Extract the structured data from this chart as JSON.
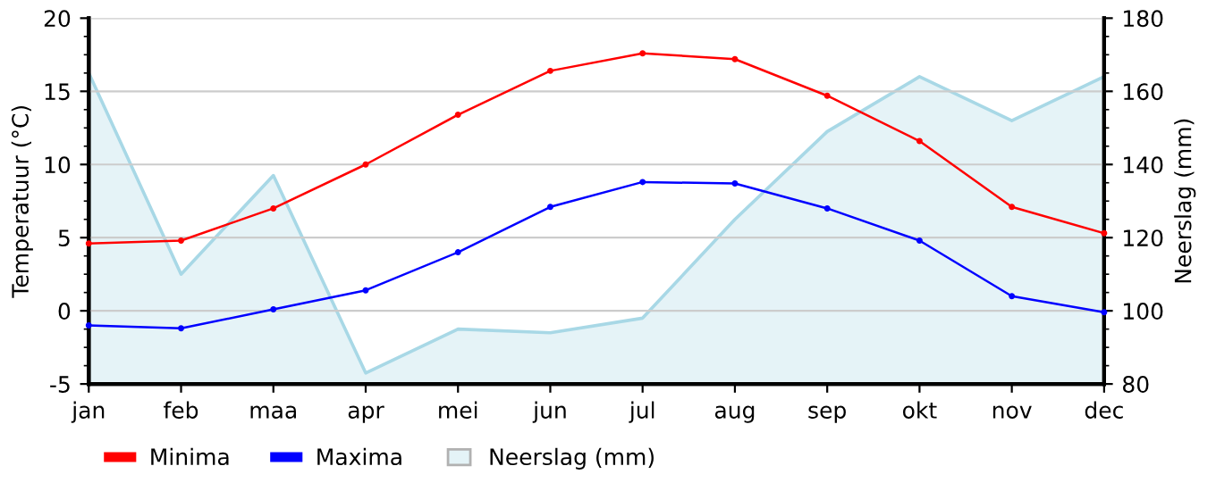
{
  "chart_data": {
    "type": "line",
    "ylabel": "Temperatuur (°C)",
    "y2label": "Neerslag (mm)",
    "categories": [
      "jan",
      "feb",
      "maa",
      "apr",
      "mei",
      "jun",
      "jul",
      "aug",
      "sep",
      "okt",
      "nov",
      "dec"
    ],
    "series": [
      {
        "name": "Minima",
        "color": "#ff0000",
        "marker": "circle",
        "values": [
          4.6,
          4.8,
          7.0,
          10.0,
          13.4,
          16.4,
          17.6,
          17.2,
          14.7,
          11.6,
          7.1,
          5.3
        ]
      },
      {
        "name": "Maxima",
        "color": "#0000ff",
        "marker": "circle",
        "values": [
          -1.0,
          -1.2,
          0.1,
          1.4,
          4.0,
          7.1,
          8.8,
          8.7,
          7.0,
          4.8,
          1.0,
          -0.1
        ]
      },
      {
        "name": "Neerslag (mm)",
        "type": "area",
        "axis": "y2",
        "color": "#a8d8e6",
        "values": [
          165,
          110,
          137,
          83,
          95,
          94,
          98,
          125,
          149,
          164,
          152,
          164
        ]
      }
    ],
    "ylim": [
      -5,
      20
    ],
    "yticks": [
      -5,
      0,
      5,
      10,
      15,
      20
    ],
    "y2lim": [
      80,
      180
    ],
    "y2ticks": [
      80,
      100,
      120,
      140,
      160,
      180
    ],
    "grid": "y",
    "legend": "bottom",
    "line_style": "solid"
  }
}
